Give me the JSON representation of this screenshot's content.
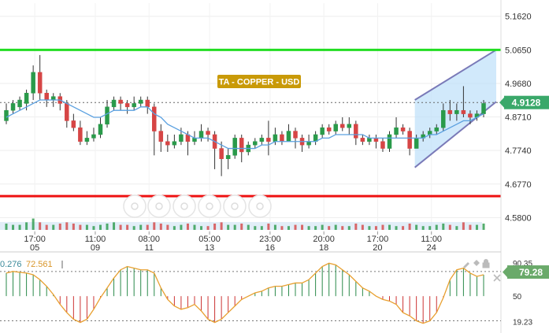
{
  "chart_data": {
    "type": "candlestick",
    "title": "TA - COPPER - USD",
    "price_ticks": [
      "5.1620",
      "5.0650",
      "4.9680",
      "4.8710",
      "4.7740",
      "4.6770",
      "4.5800"
    ],
    "y_range": [
      4.54,
      5.2
    ],
    "current_price": "4.9128",
    "time_ticks": [
      {
        "time": "17:00",
        "date": "05"
      },
      {
        "time": "11:00",
        "date": "09"
      },
      {
        "time": "08:00",
        "date": "11"
      },
      {
        "time": "05:00",
        "date": "13"
      },
      {
        "time": "23:00",
        "date": "16"
      },
      {
        "time": "20:00",
        "date": "18"
      },
      {
        "time": "17:00",
        "date": "20"
      },
      {
        "time": "11:00",
        "date": "24"
      }
    ],
    "resistance_level": 5.065,
    "support_level": 4.642,
    "channel": {
      "upper": [
        4.92,
        5.065
      ],
      "lower": [
        4.725,
        4.915
      ]
    },
    "candles": [
      [
        4.86,
        4.89,
        4.85,
        4.91
      ],
      [
        4.89,
        4.91,
        4.88,
        4.92
      ],
      [
        4.9,
        4.92,
        4.89,
        4.93
      ],
      [
        4.91,
        4.94,
        4.89,
        4.95
      ],
      [
        4.94,
        5.0,
        4.92,
        5.02
      ],
      [
        5.0,
        4.94,
        4.92,
        5.05
      ],
      [
        4.94,
        4.92,
        4.9,
        4.95
      ],
      [
        4.92,
        4.93,
        4.9,
        4.94
      ],
      [
        4.93,
        4.91,
        4.89,
        4.94
      ],
      [
        4.91,
        4.86,
        4.84,
        4.92
      ],
      [
        4.86,
        4.84,
        4.83,
        4.88
      ],
      [
        4.84,
        4.8,
        4.79,
        4.86
      ],
      [
        4.8,
        4.81,
        4.79,
        4.83
      ],
      [
        4.81,
        4.82,
        4.8,
        4.84
      ],
      [
        4.82,
        4.85,
        4.81,
        4.87
      ],
      [
        4.85,
        4.9,
        4.84,
        4.92
      ],
      [
        4.9,
        4.92,
        4.89,
        4.93
      ],
      [
        4.92,
        4.91,
        4.89,
        4.93
      ],
      [
        4.91,
        4.9,
        4.88,
        4.92
      ],
      [
        4.9,
        4.91,
        4.89,
        4.93
      ],
      [
        4.91,
        4.92,
        4.9,
        4.93
      ],
      [
        4.92,
        4.9,
        4.88,
        4.93
      ],
      [
        4.9,
        4.83,
        4.76,
        4.91
      ],
      [
        4.83,
        4.8,
        4.77,
        4.85
      ],
      [
        4.8,
        4.79,
        4.77,
        4.82
      ],
      [
        4.79,
        4.8,
        4.78,
        4.82
      ],
      [
        4.8,
        4.82,
        4.79,
        4.84
      ],
      [
        4.82,
        4.8,
        4.76,
        4.83
      ],
      [
        4.8,
        4.81,
        4.79,
        4.83
      ],
      [
        4.81,
        4.83,
        4.8,
        4.85
      ],
      [
        4.83,
        4.82,
        4.8,
        4.84
      ],
      [
        4.82,
        4.78,
        4.72,
        4.83
      ],
      [
        4.78,
        4.75,
        4.7,
        4.8
      ],
      [
        4.75,
        4.76,
        4.72,
        4.78
      ],
      [
        4.76,
        4.81,
        4.75,
        4.82
      ],
      [
        4.81,
        4.77,
        4.74,
        4.82
      ],
      [
        4.77,
        4.79,
        4.76,
        4.8
      ],
      [
        4.79,
        4.8,
        4.78,
        4.81
      ],
      [
        4.8,
        4.81,
        4.79,
        4.82
      ],
      [
        4.81,
        4.8,
        4.76,
        4.86
      ],
      [
        4.8,
        4.82,
        4.79,
        4.84
      ],
      [
        4.82,
        4.8,
        4.79,
        4.83
      ],
      [
        4.8,
        4.83,
        4.8,
        4.85
      ],
      [
        4.83,
        4.81,
        4.78,
        4.84
      ],
      [
        4.81,
        4.79,
        4.77,
        4.82
      ],
      [
        4.79,
        4.8,
        4.78,
        4.82
      ],
      [
        4.8,
        4.82,
        4.79,
        4.83
      ],
      [
        4.82,
        4.84,
        4.81,
        4.85
      ],
      [
        4.84,
        4.83,
        4.82,
        4.85
      ],
      [
        4.83,
        4.85,
        4.82,
        4.86
      ],
      [
        4.85,
        4.84,
        4.83,
        4.87
      ],
      [
        4.84,
        4.85,
        4.82,
        4.87
      ],
      [
        4.85,
        4.81,
        4.79,
        4.86
      ],
      [
        4.81,
        4.8,
        4.79,
        4.82
      ],
      [
        4.8,
        4.81,
        4.79,
        4.82
      ],
      [
        4.81,
        4.8,
        4.78,
        4.82
      ],
      [
        4.8,
        4.78,
        4.77,
        4.81
      ],
      [
        4.78,
        4.82,
        4.77,
        4.83
      ],
      [
        4.82,
        4.84,
        4.81,
        4.87
      ],
      [
        4.84,
        4.83,
        4.82,
        4.85
      ],
      [
        4.83,
        4.78,
        4.76,
        4.84
      ],
      [
        4.78,
        4.81,
        4.78,
        4.82
      ],
      [
        4.81,
        4.82,
        4.8,
        4.83
      ],
      [
        4.82,
        4.83,
        4.81,
        4.84
      ],
      [
        4.83,
        4.84,
        4.82,
        4.85
      ],
      [
        4.84,
        4.89,
        4.83,
        4.91
      ],
      [
        4.89,
        4.88,
        4.86,
        4.92
      ],
      [
        4.88,
        4.89,
        4.86,
        4.91
      ],
      [
        4.89,
        4.88,
        4.87,
        4.96
      ],
      [
        4.88,
        4.87,
        4.85,
        4.89
      ],
      [
        4.87,
        4.88,
        4.86,
        4.89
      ],
      [
        4.88,
        4.91,
        4.87,
        4.92
      ]
    ],
    "sma": [
      4.87,
      4.88,
      4.89,
      4.9,
      4.91,
      4.92,
      4.92,
      4.92,
      4.92,
      4.91,
      4.9,
      4.89,
      4.88,
      4.87,
      4.87,
      4.88,
      4.89,
      4.89,
      4.89,
      4.89,
      4.9,
      4.9,
      4.88,
      4.87,
      4.85,
      4.84,
      4.83,
      4.82,
      4.81,
      4.81,
      4.81,
      4.8,
      4.79,
      4.78,
      4.78,
      4.78,
      4.78,
      4.78,
      4.79,
      4.79,
      4.8,
      4.8,
      4.8,
      4.8,
      4.8,
      4.8,
      4.8,
      4.81,
      4.81,
      4.82,
      4.82,
      4.82,
      4.82,
      4.82,
      4.81,
      4.81,
      4.81,
      4.81,
      4.81,
      4.81,
      4.81,
      4.81,
      4.81,
      4.82,
      4.82,
      4.83,
      4.84,
      4.85,
      4.86,
      4.86,
      4.87,
      4.88
    ],
    "volumes": [
      5,
      4,
      4,
      6,
      9,
      6,
      4,
      4,
      5,
      6,
      5,
      4,
      4,
      3,
      4,
      5,
      6,
      4,
      4,
      3,
      4,
      4,
      6,
      5,
      4,
      3,
      4,
      5,
      4,
      3,
      3,
      5,
      6,
      4,
      4,
      5,
      4,
      3,
      3,
      5,
      4,
      3,
      3,
      4,
      4,
      3,
      3,
      4,
      3,
      4,
      3,
      3,
      5,
      4,
      3,
      3,
      4,
      4,
      3,
      3,
      5,
      4,
      3,
      3,
      4,
      5,
      4,
      3,
      6,
      4,
      4,
      5
    ],
    "stochastic": {
      "values_label": [
        "0.276",
        "72.561"
      ],
      "current": "79.28",
      "ticks": [
        "90.35",
        "50",
        "19.23"
      ],
      "range": [
        10,
        98
      ],
      "k": [
        78,
        80,
        79,
        78,
        76,
        70,
        62,
        52,
        40,
        30,
        22,
        18,
        22,
        34,
        48,
        60,
        72,
        82,
        86,
        84,
        82,
        82,
        78,
        60,
        46,
        38,
        34,
        36,
        40,
        32,
        22,
        18,
        22,
        30,
        38,
        46,
        50,
        54,
        56,
        60,
        62,
        62,
        64,
        66,
        66,
        70,
        78,
        86,
        90,
        88,
        82,
        76,
        68,
        60,
        56,
        50,
        46,
        44,
        40,
        30,
        26,
        20,
        17,
        20,
        30,
        48,
        70,
        82,
        84,
        78,
        74,
        76
      ],
      "hist": [
        78,
        80,
        79,
        78,
        76,
        70,
        62,
        52,
        40,
        30,
        22,
        18,
        22,
        34,
        48,
        60,
        72,
        82,
        86,
        84,
        82,
        82,
        78,
        60,
        46,
        38,
        34,
        36,
        40,
        32,
        22,
        18,
        22,
        30,
        38,
        46,
        50,
        54,
        56,
        60,
        62,
        62,
        64,
        66,
        66,
        70,
        78,
        86,
        90,
        88,
        82,
        76,
        68,
        60,
        56,
        50,
        46,
        44,
        40,
        30,
        26,
        20,
        17,
        20,
        30,
        48,
        70,
        82,
        84,
        78,
        74,
        76
      ]
    },
    "colors": {
      "bull": "#2a9a4a",
      "bear": "#d64545",
      "sma": "#5aa0e0",
      "resistance": "#22dd22",
      "support": "#ee1111",
      "channel_line": "#7a7ab8",
      "channel_fill": "#bde0fa",
      "title_bg": "#c99a08",
      "price_badge": "#3aa86a",
      "stoch_badge": "#6aaa6a",
      "stoch_line": "#e8a030",
      "stoch_label_a": "#3a8a9a",
      "stoch_label_b": "#d9962a"
    }
  }
}
